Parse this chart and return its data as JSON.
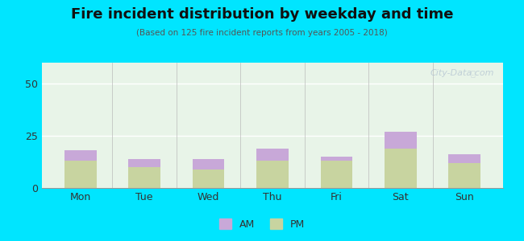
{
  "days": [
    "Mon",
    "Tue",
    "Wed",
    "Thu",
    "Fri",
    "Sat",
    "Sun"
  ],
  "pm_values": [
    13,
    10,
    9,
    13,
    13,
    19,
    12
  ],
  "am_values": [
    5,
    4,
    5,
    6,
    2,
    8,
    4
  ],
  "am_color": "#c8a8d8",
  "pm_color": "#c8d4a0",
  "title": "Fire incident distribution by weekday and time",
  "subtitle": "(Based on 125 fire incident reports from years 2005 - 2018)",
  "ylim": [
    0,
    60
  ],
  "yticks": [
    0,
    25,
    50
  ],
  "bg_outer": "#00e5ff",
  "bg_plot_top": "#e8f4e8",
  "bg_plot_bottom": "#f5f8f0",
  "watermark": "City-Data.com",
  "bar_width": 0.5
}
